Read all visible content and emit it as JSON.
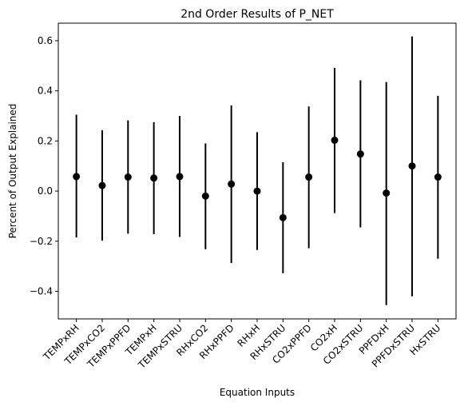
{
  "chart_data": {
    "type": "scatter",
    "title": "2nd Order Results of P_NET",
    "xlabel": "Equation Inputs",
    "ylabel": "Percent of Output Explained",
    "ylim": [
      -0.51,
      0.67
    ],
    "yticks": [
      -0.4,
      -0.2,
      0.0,
      0.2,
      0.4,
      0.6
    ],
    "ytick_labels": [
      "−0.4",
      "−0.2",
      "0.0",
      "0.2",
      "0.4",
      "0.6"
    ],
    "grid": false,
    "marker_color": "#000000",
    "categories": [
      "TEMPxRH",
      "TEMPxCO2",
      "TEMPxPPFD",
      "TEMPxH",
      "TEMPxSTRU",
      "RHxCO2",
      "RHxPPFD",
      "RHxH",
      "RHxSTRU",
      "CO2xPPFD",
      "CO2xH",
      "CO2xSTRU",
      "PPFDxH",
      "PPFDxSTRU",
      "HxSTRU"
    ],
    "values": [
      0.058,
      0.022,
      0.056,
      0.052,
      0.058,
      -0.02,
      0.028,
      0.0,
      -0.106,
      0.056,
      0.203,
      0.148,
      -0.008,
      0.1,
      0.056
    ],
    "lower": [
      -0.185,
      -0.198,
      -0.17,
      -0.172,
      -0.183,
      -0.232,
      -0.287,
      -0.235,
      -0.328,
      -0.228,
      -0.088,
      -0.145,
      -0.455,
      -0.42,
      -0.27
    ],
    "upper": [
      0.305,
      0.243,
      0.282,
      0.275,
      0.3,
      0.19,
      0.342,
      0.235,
      0.115,
      0.338,
      0.492,
      0.442,
      0.435,
      0.617,
      0.38
    ]
  }
}
